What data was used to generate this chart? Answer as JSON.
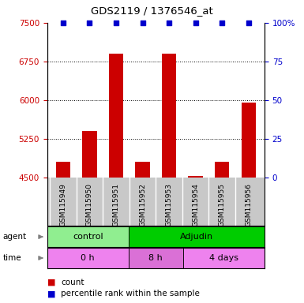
{
  "title": "GDS2119 / 1376546_at",
  "samples": [
    "GSM115949",
    "GSM115950",
    "GSM115951",
    "GSM115952",
    "GSM115953",
    "GSM115954",
    "GSM115955",
    "GSM115956"
  ],
  "counts": [
    4800,
    5400,
    6900,
    4800,
    6900,
    4530,
    4800,
    5950
  ],
  "percentile_ranks": [
    100,
    100,
    100,
    100,
    100,
    100,
    100,
    100
  ],
  "ylim_left": [
    4500,
    7500
  ],
  "yticks_left": [
    4500,
    5250,
    6000,
    6750,
    7500
  ],
  "ylim_right": [
    0,
    100
  ],
  "yticks_right": [
    0,
    25,
    50,
    75,
    100
  ],
  "bar_color": "#cc0000",
  "dot_color": "#0000cc",
  "agent_groups": [
    {
      "label": "control",
      "start": 0,
      "end": 3,
      "color": "#90ee90"
    },
    {
      "label": "Adjudin",
      "start": 3,
      "end": 8,
      "color": "#00cc00"
    }
  ],
  "time_groups": [
    {
      "label": "0 h",
      "start": 0,
      "end": 3,
      "color": "#ee82ee"
    },
    {
      "label": "8 h",
      "start": 3,
      "end": 5,
      "color": "#da70d6"
    },
    {
      "label": "4 days",
      "start": 5,
      "end": 8,
      "color": "#ee82ee"
    }
  ],
  "bar_color_hex": "#cc0000",
  "dot_color_hex": "#0000cc",
  "left_tick_color": "#cc0000",
  "right_tick_color": "#0000cc",
  "grid_color": "#000000",
  "label_area_bg": "#c8c8c8"
}
